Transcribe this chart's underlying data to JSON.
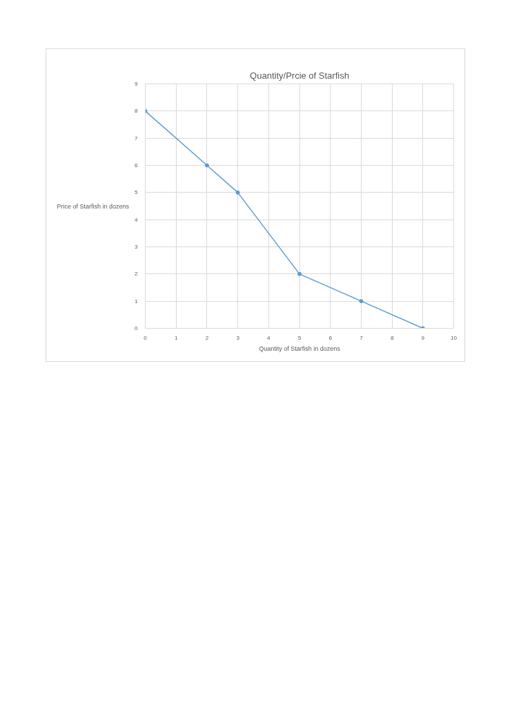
{
  "chart_data": {
    "type": "line",
    "title": "Quantity/Prcie of Starfish",
    "xlabel": "Quantity of Starfish in dozens",
    "ylabel": "Price of Starfish in dozens",
    "x": [
      0,
      2,
      3,
      5,
      7,
      9
    ],
    "series": [
      {
        "color": "#5b9bd5",
        "values": [
          8,
          6,
          5,
          2,
          1,
          0
        ]
      }
    ],
    "xlim": [
      0,
      10
    ],
    "xticks": [
      0,
      1,
      2,
      3,
      4,
      5,
      6,
      7,
      8,
      9,
      10
    ],
    "ylim": [
      0,
      9
    ],
    "yticks": [
      0,
      1,
      2,
      3,
      4,
      5,
      6,
      7,
      8,
      9
    ],
    "grid": true,
    "marker": "circle",
    "line_style": "solid"
  }
}
